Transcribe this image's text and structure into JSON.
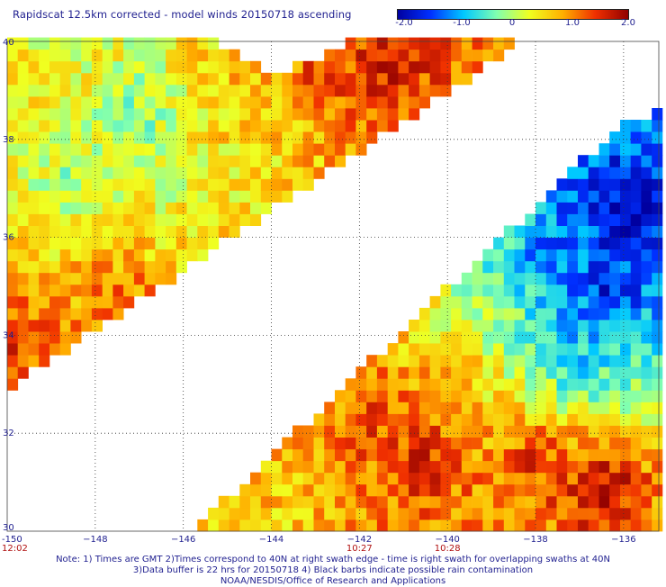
{
  "chart_data": {
    "type": "heatmap",
    "title": "Rapidscat 12.5km corrected - model winds 20150718 ascending",
    "colorbar": {
      "range": [
        -2.0,
        2.0
      ],
      "ticks": [
        "-2.0",
        "-1.0",
        "0",
        "1.0",
        "2.0"
      ],
      "colors": [
        "#0000a0",
        "#0030ff",
        "#00c8ff",
        "#80ffb0",
        "#f0ff20",
        "#ffb000",
        "#f03000",
        "#900000"
      ]
    },
    "x_axis": {
      "range": [
        -150,
        -135.2
      ],
      "ticks": [
        -150,
        -148,
        -146,
        -144,
        -142,
        -140,
        -138,
        -136
      ],
      "tick_labels": [
        "-150",
        "−148",
        "−146",
        "−144",
        "−142",
        "−140",
        "−138",
        "−136"
      ]
    },
    "y_axis": {
      "range": [
        30,
        40
      ],
      "ticks": [
        30,
        32,
        34,
        36,
        38,
        40
      ],
      "tick_labels": [
        "30",
        "32",
        "34",
        "36",
        "38",
        "40"
      ]
    },
    "grid": true,
    "times": [
      {
        "label": "12:02",
        "lon": -150
      },
      {
        "label": "10:27",
        "lon": -142
      },
      {
        "label": "10:28",
        "lon": -140
      }
    ],
    "swaths": [
      {
        "name": "left",
        "polygon": [
          [
            -150,
            40
          ],
          [
            -145.3,
            40
          ],
          [
            -145.3,
            39.9
          ],
          [
            -144.0,
            39.4
          ],
          [
            -143.3,
            39.5
          ],
          [
            -142.2,
            40
          ],
          [
            -138.3,
            40
          ],
          [
            -150,
            32.9
          ]
        ],
        "cells": [
          [
            [
              -149,
              39
            ],
            0.4
          ],
          [
            [
              -147,
              38.5
            ],
            -0.3
          ],
          [
            [
              -148.5,
              37
            ],
            -0.2
          ],
          [
            [
              -146.5,
              37.5
            ],
            0.1
          ],
          [
            [
              -149,
              35.2
            ],
            0.6
          ],
          [
            [
              -147.5,
              34.8
            ],
            1.2
          ],
          [
            [
              -149.5,
              34
            ],
            1.5
          ],
          [
            [
              -145,
              38.8
            ],
            0.7
          ],
          [
            [
              -143,
              39.4
            ],
            1.3
          ],
          [
            [
              -141.5,
              39.5
            ],
            1.6
          ],
          [
            [
              -144,
              38.2
            ],
            0.5
          ]
        ]
      },
      {
        "name": "right",
        "polygon": [
          [
            -136.2,
            38.2
          ],
          [
            -135.2,
            38.6
          ],
          [
            -135.2,
            30
          ],
          [
            -145.8,
            30
          ]
        ],
        "cells": [
          [
            [
              -136,
              36.5
            ],
            -2.0
          ],
          [
            [
              -136.5,
              35
            ],
            -1.7
          ],
          [
            [
              -137.5,
              35.5
            ],
            -1.2
          ],
          [
            [
              -137,
              33.5
            ],
            -0.9
          ],
          [
            [
              -138.5,
              34
            ],
            -0.4
          ],
          [
            [
              -139.5,
              33.2
            ],
            0.8
          ],
          [
            [
              -141.5,
              32.3
            ],
            1.4
          ],
          [
            [
              -140.5,
              31.5
            ],
            1.6
          ],
          [
            [
              -136.5,
              31
            ],
            1.9
          ],
          [
            [
              -142.5,
              31
            ],
            1.1
          ],
          [
            [
              -143.5,
              30.5
            ],
            0.6
          ],
          [
            [
              -138,
              31.5
            ],
            1.5
          ]
        ]
      }
    ],
    "notes": [
      "Note: 1) Times are GMT 2)Times correspond to 40N at right swath edge - time is right swath for overlapping swaths at 40N",
      "3)Data buffer is 22 hrs for 20150718 4) Black barbs indicate possible rain contamination",
      "NOAA/NESDIS/Office of Research and Applications"
    ]
  }
}
